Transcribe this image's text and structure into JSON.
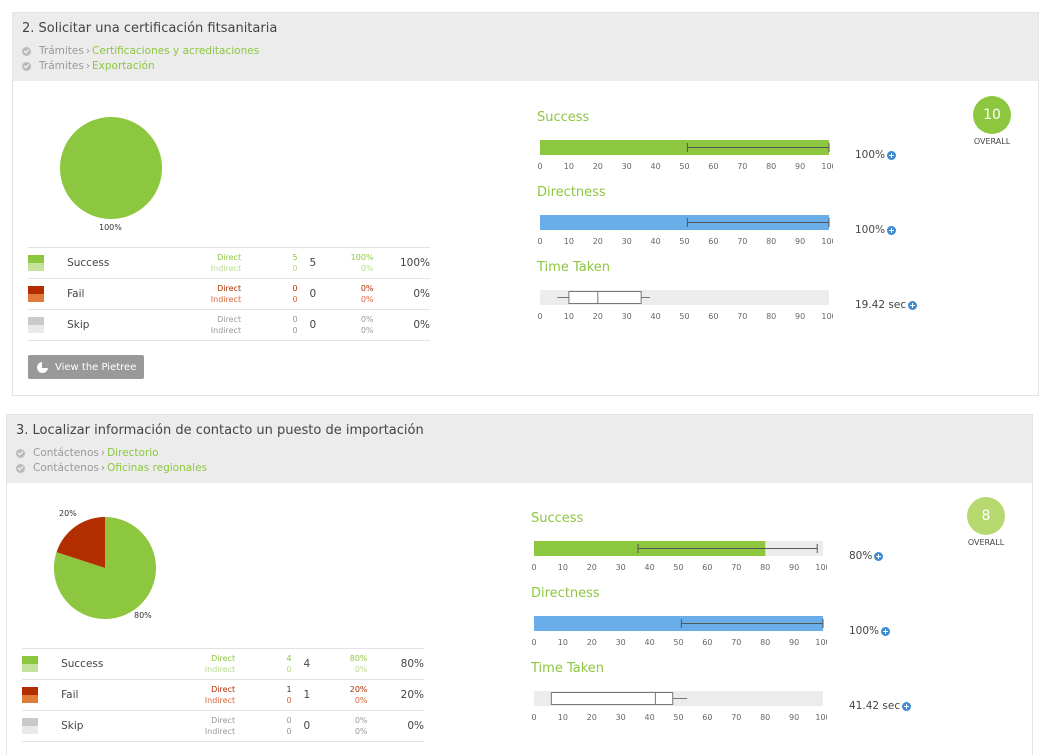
{
  "tasks": [
    {
      "title": "2. Solicitar una certificación fitsanitaria",
      "paths": [
        {
          "parent": "Trámites",
          "leaf": "Certificaciones y acreditaciones"
        },
        {
          "parent": "Trámites",
          "leaf": "Exportación"
        }
      ],
      "pie": {
        "success": 100,
        "fail": 0,
        "skip": 0,
        "labels": [
          "100%"
        ]
      },
      "rows": [
        {
          "label": "Success",
          "direct_label": "Direct",
          "indirect_label": "Indirect",
          "direct": "5",
          "indirect": "0",
          "total": "5",
          "direct_pct": "100%",
          "indirect_pct": "0%",
          "total_pct": "100%"
        },
        {
          "label": "Fail",
          "direct_label": "Direct",
          "indirect_label": "Indirect",
          "direct": "0",
          "indirect": "0",
          "total": "0",
          "direct_pct": "0%",
          "indirect_pct": "0%",
          "total_pct": "0%"
        },
        {
          "label": "Skip",
          "direct_label": "Direct",
          "indirect_label": "Indirect",
          "direct": "0",
          "indirect": "0",
          "total": "0",
          "direct_pct": "0%",
          "indirect_pct": "0%",
          "total_pct": "0%"
        }
      ],
      "pietree_label": "View the Pietree",
      "metrics": {
        "success": {
          "title": "Success",
          "value": "100%",
          "bar": 100,
          "whisker": [
            51,
            100
          ]
        },
        "directness": {
          "title": "Directness",
          "value": "100%",
          "bar": 100,
          "whisker": [
            51,
            100
          ]
        },
        "time": {
          "title": "Time Taken",
          "value": "19.42 sec",
          "box": {
            "min": 6,
            "q1": 10,
            "median": 20,
            "q3": 35,
            "max": 38
          }
        }
      },
      "overall": {
        "score": "10",
        "label": "OVERALL",
        "color": "#8dc63f"
      }
    },
    {
      "title": "3. Localizar información de contacto un puesto de importación",
      "paths": [
        {
          "parent": "Contáctenos",
          "leaf": "Directorio"
        },
        {
          "parent": "Contáctenos",
          "leaf": "Oficinas regionales"
        }
      ],
      "pie": {
        "success": 80,
        "fail": 20,
        "skip": 0,
        "labels": [
          "20%",
          "80%"
        ]
      },
      "rows": [
        {
          "label": "Success",
          "direct_label": "Direct",
          "indirect_label": "Indirect",
          "direct": "4",
          "indirect": "0",
          "total": "4",
          "direct_pct": "80%",
          "indirect_pct": "0%",
          "total_pct": "80%"
        },
        {
          "label": "Fail",
          "direct_label": "Direct",
          "indirect_label": "Indirect",
          "direct": "1",
          "indirect": "0",
          "total": "1",
          "direct_pct": "20%",
          "indirect_pct": "0%",
          "total_pct": "20%"
        },
        {
          "label": "Skip",
          "direct_label": "Direct",
          "indirect_label": "Indirect",
          "direct": "0",
          "indirect": "0",
          "total": "0",
          "direct_pct": "0%",
          "indirect_pct": "0%",
          "total_pct": "0%"
        }
      ],
      "metrics": {
        "success": {
          "title": "Success",
          "value": "80%",
          "bar": 80,
          "whisker": [
            36,
            98
          ]
        },
        "directness": {
          "title": "Directness",
          "value": "100%",
          "bar": 100,
          "whisker": [
            51,
            100
          ]
        },
        "time": {
          "title": "Time Taken",
          "value": "41.42 sec",
          "box": {
            "min": 6,
            "q1": 6,
            "median": 42,
            "q3": 48,
            "max": 53
          }
        }
      },
      "overall": {
        "score": "8",
        "label": "OVERALL",
        "color": "#b5d96f"
      }
    }
  ],
  "axis_ticks": [
    "0",
    "10",
    "20",
    "30",
    "40",
    "50",
    "60",
    "70",
    "80",
    "90",
    "100"
  ],
  "colors": {
    "success": "#8dc63f",
    "success_light": "#c7e39b",
    "fail": "#b22d00",
    "fail_light": "#e07b3a",
    "skip": "#c9c9c9",
    "skip_light": "#e9e9e9",
    "directness": "#6aaee9",
    "track": "#ececec"
  },
  "chart_data": [
    {
      "type": "pie",
      "categories": [
        "Success",
        "Fail",
        "Skip"
      ],
      "values": [
        100,
        0,
        0
      ]
    },
    {
      "type": "pie",
      "categories": [
        "Success",
        "Fail",
        "Skip"
      ],
      "values": [
        80,
        20,
        0
      ]
    }
  ]
}
